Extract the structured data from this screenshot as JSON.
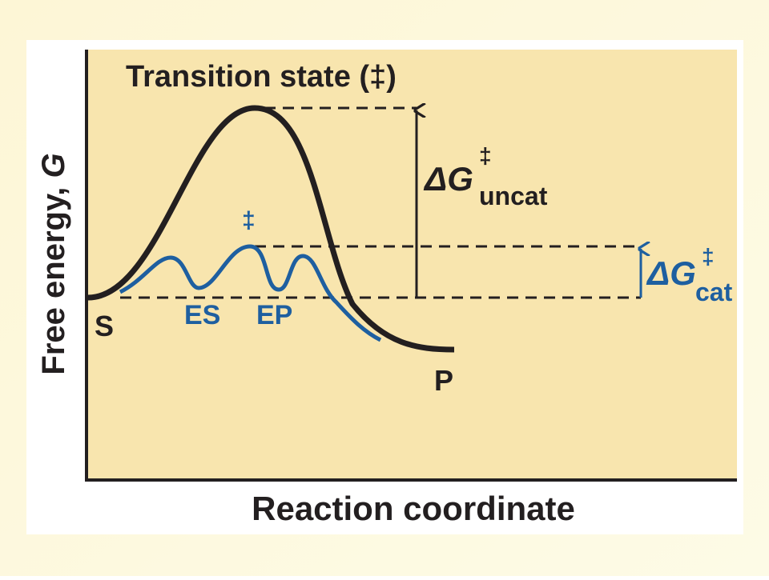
{
  "title": "Transition state (‡)",
  "y_axis": {
    "label": "Free energy, ",
    "symbol": "G"
  },
  "x_axis": {
    "label": "Reaction coordinate"
  },
  "labels": {
    "substrate": "S",
    "product": "P",
    "enzyme_substrate": "ES",
    "enzyme_product": "EP",
    "catalyzed_transition": "‡"
  },
  "delta_uncat": {
    "symbol": "ΔG",
    "superscript": "‡",
    "subscript": "uncat"
  },
  "delta_cat": {
    "symbol": "ΔG",
    "superscript": "‡",
    "subscript": "cat"
  }
}
